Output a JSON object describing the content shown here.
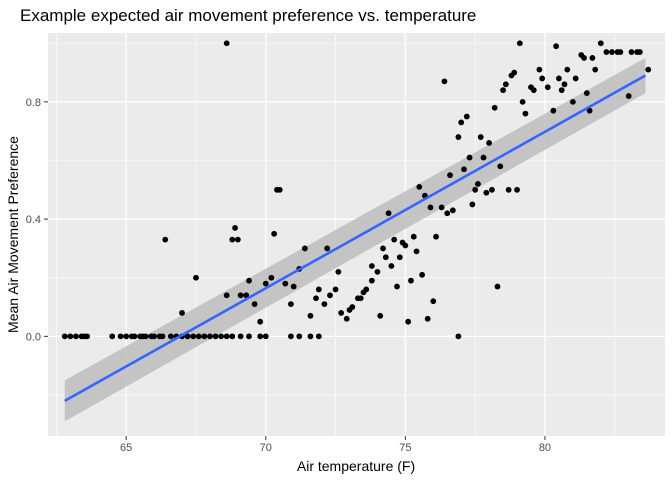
{
  "chart_data": {
    "type": "scatter",
    "title": "Example expected air movement preference vs. temperature",
    "xlabel": "Air temperature (F)",
    "ylabel": "Mean Air Movement Preference",
    "xlim": [
      62.2,
      84.3
    ],
    "ylim": [
      -0.34,
      1.035
    ],
    "x_ticks": [
      65,
      70,
      75,
      80
    ],
    "x_tick_labels": [
      "65",
      "70",
      "75",
      "80"
    ],
    "y_ticks": [
      0.0,
      0.4,
      0.8
    ],
    "y_tick_labels": [
      "0.0",
      "0.4",
      "0.8"
    ],
    "x_minor_ticks": [
      62.5,
      67.5,
      72.5,
      77.5,
      82.5
    ],
    "y_minor_ticks": [
      -0.2,
      0.2,
      0.6,
      1.0
    ],
    "grid": true,
    "legend": "none",
    "colors": {
      "panel": "#ebebeb",
      "grid": "#ffffff",
      "points": "#000000",
      "fit_line": "#3366ff",
      "confidence_band": "#bdbdbd"
    },
    "fit": {
      "method": "linear",
      "x": [
        62.8,
        83.6
      ],
      "y": [
        -0.22,
        0.89
      ],
      "band_upper": [
        -0.15,
        0.95
      ],
      "band_lower": [
        -0.29,
        0.83
      ]
    },
    "points": [
      {
        "x": 62.8,
        "y": 0.0
      },
      {
        "x": 63.0,
        "y": 0.0
      },
      {
        "x": 63.2,
        "y": 0.0
      },
      {
        "x": 63.4,
        "y": 0.0
      },
      {
        "x": 63.5,
        "y": 0.0
      },
      {
        "x": 63.6,
        "y": 0.0
      },
      {
        "x": 64.5,
        "y": 0.0
      },
      {
        "x": 64.8,
        "y": 0.0
      },
      {
        "x": 65.0,
        "y": 0.0
      },
      {
        "x": 65.2,
        "y": 0.0
      },
      {
        "x": 65.3,
        "y": 0.0
      },
      {
        "x": 65.5,
        "y": 0.0
      },
      {
        "x": 65.6,
        "y": 0.0
      },
      {
        "x": 65.7,
        "y": 0.0
      },
      {
        "x": 65.9,
        "y": 0.0
      },
      {
        "x": 66.0,
        "y": 0.0
      },
      {
        "x": 66.2,
        "y": 0.0
      },
      {
        "x": 66.3,
        "y": 0.0
      },
      {
        "x": 66.6,
        "y": 0.0
      },
      {
        "x": 66.8,
        "y": 0.0
      },
      {
        "x": 67.0,
        "y": 0.0
      },
      {
        "x": 67.2,
        "y": 0.0
      },
      {
        "x": 67.4,
        "y": 0.0
      },
      {
        "x": 67.6,
        "y": 0.0
      },
      {
        "x": 67.8,
        "y": 0.0
      },
      {
        "x": 68.0,
        "y": 0.0
      },
      {
        "x": 68.2,
        "y": 0.0
      },
      {
        "x": 68.4,
        "y": 0.0
      },
      {
        "x": 68.6,
        "y": 0.0
      },
      {
        "x": 68.8,
        "y": 0.0
      },
      {
        "x": 69.1,
        "y": 0.0
      },
      {
        "x": 69.4,
        "y": 0.0
      },
      {
        "x": 69.8,
        "y": 0.0
      },
      {
        "x": 70.0,
        "y": 0.0
      },
      {
        "x": 70.9,
        "y": 0.0
      },
      {
        "x": 71.2,
        "y": 0.0
      },
      {
        "x": 71.6,
        "y": 0.0
      },
      {
        "x": 71.9,
        "y": 0.0
      },
      {
        "x": 76.9,
        "y": 0.0
      },
      {
        "x": 66.4,
        "y": 0.33
      },
      {
        "x": 67.0,
        "y": 0.08
      },
      {
        "x": 67.5,
        "y": 0.2
      },
      {
        "x": 68.6,
        "y": 1.0
      },
      {
        "x": 68.6,
        "y": 0.14
      },
      {
        "x": 68.8,
        "y": 0.33
      },
      {
        "x": 68.9,
        "y": 0.37
      },
      {
        "x": 69.0,
        "y": 0.33
      },
      {
        "x": 69.1,
        "y": 0.14
      },
      {
        "x": 69.3,
        "y": 0.14
      },
      {
        "x": 69.4,
        "y": 0.19
      },
      {
        "x": 69.6,
        "y": 0.11
      },
      {
        "x": 69.8,
        "y": 0.05
      },
      {
        "x": 70.0,
        "y": 0.18
      },
      {
        "x": 70.2,
        "y": 0.2
      },
      {
        "x": 70.3,
        "y": 0.35
      },
      {
        "x": 70.4,
        "y": 0.5
      },
      {
        "x": 70.5,
        "y": 0.5
      },
      {
        "x": 70.7,
        "y": 0.18
      },
      {
        "x": 70.9,
        "y": 0.11
      },
      {
        "x": 71.0,
        "y": 0.17
      },
      {
        "x": 71.2,
        "y": 0.23
      },
      {
        "x": 71.4,
        "y": 0.3
      },
      {
        "x": 71.6,
        "y": 0.07
      },
      {
        "x": 71.8,
        "y": 0.13
      },
      {
        "x": 71.9,
        "y": 0.16
      },
      {
        "x": 72.1,
        "y": 0.11
      },
      {
        "x": 72.2,
        "y": 0.3
      },
      {
        "x": 72.3,
        "y": 0.14
      },
      {
        "x": 72.5,
        "y": 0.16
      },
      {
        "x": 72.6,
        "y": 0.22
      },
      {
        "x": 72.7,
        "y": 0.08
      },
      {
        "x": 72.9,
        "y": 0.06
      },
      {
        "x": 73.0,
        "y": 0.09
      },
      {
        "x": 73.1,
        "y": 0.1
      },
      {
        "x": 73.3,
        "y": 0.13
      },
      {
        "x": 73.4,
        "y": 0.13
      },
      {
        "x": 73.5,
        "y": 0.15
      },
      {
        "x": 73.6,
        "y": 0.16
      },
      {
        "x": 73.8,
        "y": 0.19
      },
      {
        "x": 73.8,
        "y": 0.24
      },
      {
        "x": 74.0,
        "y": 0.22
      },
      {
        "x": 74.1,
        "y": 0.07
      },
      {
        "x": 74.2,
        "y": 0.3
      },
      {
        "x": 74.3,
        "y": 0.27
      },
      {
        "x": 74.4,
        "y": 0.42
      },
      {
        "x": 74.5,
        "y": 0.24
      },
      {
        "x": 74.6,
        "y": 0.33
      },
      {
        "x": 74.7,
        "y": 0.17
      },
      {
        "x": 74.8,
        "y": 0.27
      },
      {
        "x": 74.9,
        "y": 0.32
      },
      {
        "x": 75.0,
        "y": 0.31
      },
      {
        "x": 75.1,
        "y": 0.05
      },
      {
        "x": 75.2,
        "y": 0.19
      },
      {
        "x": 75.3,
        "y": 0.34
      },
      {
        "x": 75.4,
        "y": 0.29
      },
      {
        "x": 75.5,
        "y": 0.51
      },
      {
        "x": 75.6,
        "y": 0.21
      },
      {
        "x": 75.7,
        "y": 0.48
      },
      {
        "x": 75.8,
        "y": 0.06
      },
      {
        "x": 75.9,
        "y": 0.44
      },
      {
        "x": 76.0,
        "y": 0.12
      },
      {
        "x": 76.1,
        "y": 0.34
      },
      {
        "x": 76.3,
        "y": 0.44
      },
      {
        "x": 76.4,
        "y": 0.87
      },
      {
        "x": 76.5,
        "y": 0.42
      },
      {
        "x": 76.6,
        "y": 0.55
      },
      {
        "x": 76.7,
        "y": 0.43
      },
      {
        "x": 76.9,
        "y": 0.68
      },
      {
        "x": 77.0,
        "y": 0.73
      },
      {
        "x": 77.1,
        "y": 0.57
      },
      {
        "x": 77.2,
        "y": 0.75
      },
      {
        "x": 77.3,
        "y": 0.61
      },
      {
        "x": 77.4,
        "y": 0.45
      },
      {
        "x": 77.5,
        "y": 0.5
      },
      {
        "x": 77.6,
        "y": 0.52
      },
      {
        "x": 77.7,
        "y": 0.68
      },
      {
        "x": 77.8,
        "y": 0.61
      },
      {
        "x": 77.9,
        "y": 0.49
      },
      {
        "x": 78.0,
        "y": 0.66
      },
      {
        "x": 78.1,
        "y": 0.5
      },
      {
        "x": 78.2,
        "y": 0.78
      },
      {
        "x": 78.3,
        "y": 0.17
      },
      {
        "x": 78.4,
        "y": 0.58
      },
      {
        "x": 78.5,
        "y": 0.84
      },
      {
        "x": 78.6,
        "y": 0.86
      },
      {
        "x": 78.7,
        "y": 0.5
      },
      {
        "x": 78.8,
        "y": 0.89
      },
      {
        "x": 78.9,
        "y": 0.9
      },
      {
        "x": 79.0,
        "y": 0.5
      },
      {
        "x": 79.1,
        "y": 1.0
      },
      {
        "x": 79.2,
        "y": 0.8
      },
      {
        "x": 79.3,
        "y": 0.76
      },
      {
        "x": 79.5,
        "y": 0.85
      },
      {
        "x": 79.6,
        "y": 0.84
      },
      {
        "x": 79.8,
        "y": 0.91
      },
      {
        "x": 79.9,
        "y": 0.88
      },
      {
        "x": 80.1,
        "y": 0.85
      },
      {
        "x": 80.3,
        "y": 0.77
      },
      {
        "x": 80.4,
        "y": 0.99
      },
      {
        "x": 80.5,
        "y": 0.88
      },
      {
        "x": 80.6,
        "y": 0.84
      },
      {
        "x": 80.7,
        "y": 0.86
      },
      {
        "x": 80.8,
        "y": 0.91
      },
      {
        "x": 81.0,
        "y": 0.8
      },
      {
        "x": 81.1,
        "y": 0.88
      },
      {
        "x": 81.3,
        "y": 0.96
      },
      {
        "x": 81.4,
        "y": 0.95
      },
      {
        "x": 81.5,
        "y": 0.83
      },
      {
        "x": 81.6,
        "y": 0.77
      },
      {
        "x": 81.7,
        "y": 0.95
      },
      {
        "x": 81.8,
        "y": 0.91
      },
      {
        "x": 82.0,
        "y": 1.0
      },
      {
        "x": 82.2,
        "y": 0.97
      },
      {
        "x": 82.4,
        "y": 0.97
      },
      {
        "x": 82.6,
        "y": 0.97
      },
      {
        "x": 82.7,
        "y": 0.97
      },
      {
        "x": 83.0,
        "y": 0.82
      },
      {
        "x": 83.1,
        "y": 0.97
      },
      {
        "x": 83.3,
        "y": 0.97
      },
      {
        "x": 83.4,
        "y": 0.97
      },
      {
        "x": 83.7,
        "y": 0.91
      }
    ]
  }
}
